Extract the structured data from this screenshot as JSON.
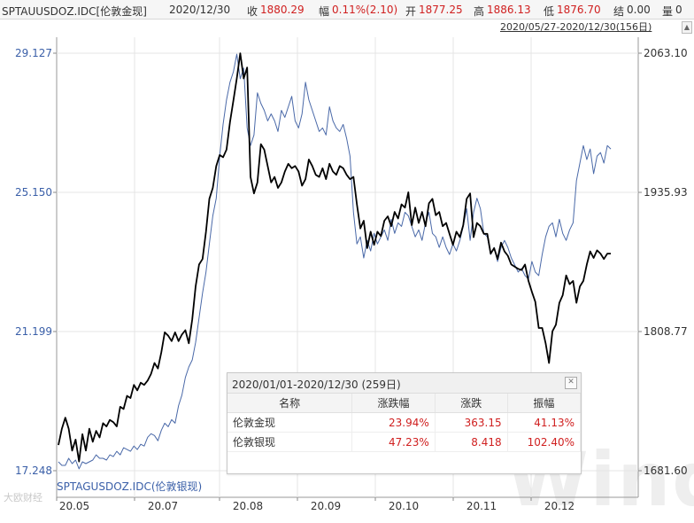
{
  "header": {
    "symbol": "SPTAUUSDOZ.IDC[伦敦金现]",
    "date": "2020/12/30",
    "close_label": "收",
    "close_value": "1880.29",
    "change_label": "幅",
    "change_value": "0.11%(2.10)",
    "open_label": "开",
    "open_value": "1877.25",
    "high_label": "高",
    "high_value": "1886.13",
    "low_label": "低",
    "low_value": "1876.70",
    "settle_label": "结",
    "settle_value": "0.00",
    "vol_label": "量",
    "vol_value": "0"
  },
  "range_label": "2020/05/27-2020/12/30(156日)",
  "secondary_label": "SPTAGUSDOZ.IDC(伦敦银现)",
  "watermark": "Wind",
  "source_note": "大欧财经",
  "stats_popup": {
    "title": "2020/01/01-2020/12/30 (259日)",
    "columns": [
      "名称",
      "涨跌幅",
      "涨跌",
      "振幅"
    ],
    "rows": [
      {
        "name": "伦敦金现",
        "pct": "23.94%",
        "chg": "363.15",
        "amp": "41.13%"
      },
      {
        "name": "伦敦银现",
        "pct": "47.23%",
        "chg": "8.418",
        "amp": "102.40%"
      }
    ]
  },
  "chart_data": {
    "type": "line",
    "x_ticks": [
      "20.05",
      "20.07",
      "20.08",
      "20.09",
      "20.10",
      "20.11",
      "20.12"
    ],
    "left_axis": {
      "ticks": [
        "29.127",
        "25.150",
        "21.199",
        "17.248"
      ],
      "range": [
        17.248,
        29.127
      ]
    },
    "right_axis": {
      "ticks": [
        "2063.10",
        "1935.93",
        "1808.77",
        "1681.60"
      ],
      "range": [
        1681.6,
        2063.1
      ]
    },
    "colors": {
      "gold": "#000000",
      "silver": "#4a69a8"
    },
    "series": [
      {
        "name": "SPTAUUSDOZ.IDC[伦敦金现]",
        "axis": "right",
        "values": [
          1705,
          1720,
          1730,
          1720,
          1700,
          1710,
          1690,
          1715,
          1700,
          1720,
          1708,
          1718,
          1712,
          1725,
          1722,
          1728,
          1726,
          1722,
          1740,
          1738,
          1750,
          1748,
          1760,
          1755,
          1762,
          1760,
          1764,
          1770,
          1780,
          1775,
          1790,
          1808,
          1805,
          1800,
          1808,
          1800,
          1806,
          1810,
          1798,
          1820,
          1850,
          1870,
          1875,
          1900,
          1930,
          1940,
          1960,
          1970,
          1968,
          1975,
          2000,
          2020,
          2040,
          2063,
          2040,
          2050,
          1950,
          1935,
          1945,
          1980,
          1975,
          1960,
          1945,
          1950,
          1940,
          1945,
          1955,
          1962,
          1958,
          1960,
          1955,
          1942,
          1948,
          1966,
          1960,
          1952,
          1950,
          1958,
          1948,
          1962,
          1955,
          1952,
          1960,
          1958,
          1952,
          1948,
          1950,
          1925,
          1903,
          1910,
          1885,
          1900,
          1888,
          1900,
          1896,
          1910,
          1914,
          1905,
          1918,
          1912,
          1925,
          1922,
          1936,
          1906,
          1922,
          1908,
          1918,
          1905,
          1926,
          1930,
          1915,
          1918,
          1905,
          1908,
          1898,
          1888,
          1900,
          1895,
          1906,
          1930,
          1935,
          1895,
          1908,
          1905,
          1898,
          1898,
          1880,
          1885,
          1875,
          1890,
          1882,
          1878,
          1870,
          1868,
          1866,
          1865,
          1870,
          1855,
          1845,
          1836,
          1812,
          1812,
          1798,
          1780,
          1809,
          1815,
          1835,
          1842,
          1860,
          1852,
          1855,
          1835,
          1850,
          1855,
          1870,
          1882,
          1876,
          1883,
          1880,
          1875,
          1880,
          1880
        ]
      },
      {
        "name": "SPTAGUSDOZ.IDC(伦敦银现)",
        "axis": "left",
        "values": [
          17.5,
          17.4,
          17.4,
          17.6,
          17.45,
          17.55,
          17.3,
          17.5,
          17.45,
          17.5,
          17.55,
          17.7,
          17.6,
          17.6,
          17.55,
          17.7,
          17.65,
          17.8,
          17.7,
          17.9,
          17.85,
          17.8,
          17.95,
          17.85,
          18.0,
          17.95,
          18.2,
          18.3,
          18.25,
          18.1,
          18.4,
          18.6,
          18.5,
          18.7,
          18.6,
          19.1,
          19.4,
          19.9,
          20.2,
          20.4,
          20.9,
          21.6,
          22.3,
          22.9,
          23.7,
          24.5,
          25.0,
          26.2,
          27.1,
          27.8,
          28.3,
          28.6,
          29.1,
          28.4,
          28.7,
          27.0,
          26.5,
          26.8,
          28.0,
          27.7,
          27.5,
          27.2,
          27.4,
          27.2,
          26.9,
          27.5,
          27.3,
          27.6,
          27.9,
          27.2,
          27.0,
          27.4,
          28.3,
          27.8,
          27.5,
          27.2,
          26.9,
          27.0,
          26.8,
          27.6,
          27.2,
          27.0,
          26.9,
          27.1,
          26.7,
          26.2,
          24.6,
          23.7,
          23.9,
          23.3,
          23.8,
          23.5,
          24.0,
          23.7,
          23.9,
          24.1,
          23.8,
          24.4,
          24.0,
          24.3,
          24.2,
          24.6,
          24.5,
          24.2,
          23.9,
          24.1,
          23.8,
          24.3,
          24.6,
          24.0,
          23.9,
          23.6,
          23.9,
          23.6,
          23.4,
          23.7,
          23.5,
          23.8,
          24.2,
          24.7,
          23.8,
          24.6,
          25.0,
          24.7,
          24.0,
          23.9,
          23.4,
          23.6,
          23.2,
          23.6,
          23.8,
          23.6,
          23.3,
          23.1,
          22.9,
          23.0,
          22.8,
          22.7,
          23.2,
          22.9,
          22.8,
          23.4,
          23.9,
          24.2,
          24.3,
          23.9,
          24.4,
          24.0,
          23.8,
          24.1,
          24.3,
          25.5,
          26.0,
          26.5,
          26.1,
          26.4,
          25.7,
          26.2,
          26.3,
          26.0,
          26.5,
          26.4
        ]
      }
    ]
  }
}
